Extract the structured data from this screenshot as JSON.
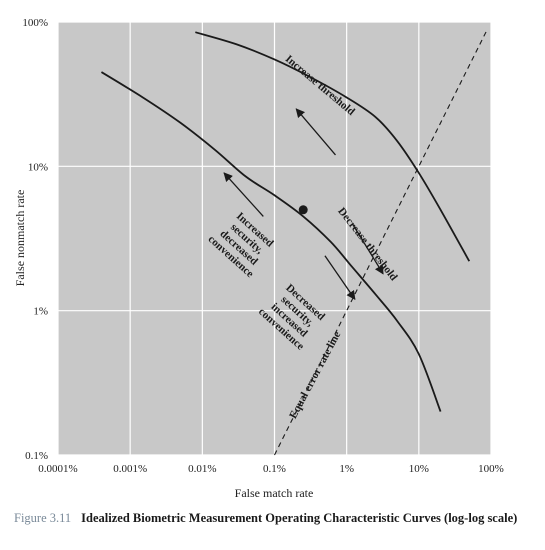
{
  "chart_data": {
    "type": "line",
    "title": "",
    "xlabel": "False match rate",
    "ylabel": "False nonmatch rate",
    "xscale": "log",
    "yscale": "log",
    "xlim": [
      0.0001,
      100
    ],
    "ylim": [
      0.1,
      100
    ],
    "x_ticks": [
      0.0001,
      0.001,
      0.01,
      0.1,
      1,
      10,
      100
    ],
    "x_tick_labels": [
      "0.0001%",
      "0.001%",
      "0.01%",
      "0.1%",
      "1%",
      "10%",
      "100%"
    ],
    "y_ticks": [
      0.1,
      1,
      10,
      100
    ],
    "y_tick_labels": [
      "0.1%",
      "1%",
      "10%",
      "100%"
    ],
    "grid": true,
    "background": "#c8c8c8",
    "gridline_color": "#ffffff",
    "series": [
      {
        "style": "solid",
        "color": "#1a1a1a",
        "x": [
          0.0004,
          0.0015,
          0.005,
          0.015,
          0.04,
          0.1,
          0.25,
          0.6,
          1.2,
          2.5,
          5,
          10,
          20
        ],
        "y": [
          45,
          30,
          20,
          13,
          8.5,
          6.3,
          4.5,
          3.0,
          2.0,
          1.3,
          0.85,
          0.5,
          0.2
        ]
      },
      {
        "style": "solid",
        "color": "#1a1a1a",
        "x": [
          0.008,
          0.03,
          0.1,
          0.3,
          1,
          2.5,
          5,
          10,
          20,
          50
        ],
        "y": [
          85,
          70,
          55,
          42,
          30,
          22,
          15,
          9,
          5,
          2.2
        ]
      },
      {
        "style": "dashed",
        "color": "#1a1a1a",
        "x": [
          0.1,
          90
        ],
        "y": [
          0.1,
          90
        ]
      }
    ],
    "points": [
      {
        "x": 0.25,
        "y": 5.0
      }
    ],
    "annotations": [
      {
        "text": "Increase threshold",
        "x": 0.4,
        "y": 35,
        "angle": 40
      },
      {
        "text": "Decrease threshold",
        "x": 1.8,
        "y": 2.8,
        "angle": 52
      },
      {
        "text": "Equal error rate line",
        "x": 0.4,
        "y": 0.35,
        "angle": -62
      },
      {
        "lines": [
          "Increased",
          "security,",
          "decreased",
          "convenience"
        ],
        "x": 0.05,
        "y": 3.5,
        "angle": 42
      },
      {
        "lines": [
          "Decreased",
          "security,",
          "increased",
          "convenience"
        ],
        "x": 0.25,
        "y": 1.1,
        "angle": 42
      }
    ],
    "arrows": [
      {
        "from": [
          0.7,
          12
        ],
        "to": [
          0.2,
          25
        ]
      },
      {
        "from": [
          0.07,
          4.5
        ],
        "to": [
          0.02,
          9
        ]
      },
      {
        "from": [
          0.5,
          2.4
        ],
        "to": [
          1.3,
          1.2
        ]
      },
      {
        "from": [
          1.2,
          4.0
        ],
        "to": [
          3.2,
          1.8
        ]
      }
    ]
  },
  "caption": {
    "number": "Figure 3.11",
    "text": "Idealized Biometric Measurement Operating Characteristic Curves (log-log scale)"
  }
}
